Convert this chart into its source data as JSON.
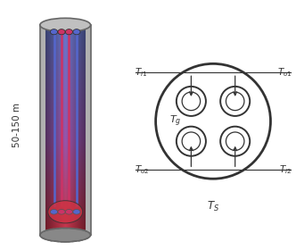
{
  "bg_color": "#ffffff",
  "cyl_fill": "#b0b0b0",
  "cyl_edge": "#666666",
  "cyl_top_fill": "#c0c0c0",
  "cyl_bot_fill": "#888888",
  "grad_colors": [
    "#6677cc",
    "#9955aa",
    "#cc3344"
  ],
  "pipe_blue": "#5566cc",
  "pipe_pink": "#cc3366",
  "label_depth": "50-150 m",
  "font_size": 7.5,
  "arrow_color": "#333333",
  "line_color": "#333333",
  "tube_lw": 1.8,
  "outer_circle_lw": 2.0,
  "inner_pipe_lw": 1.4
}
